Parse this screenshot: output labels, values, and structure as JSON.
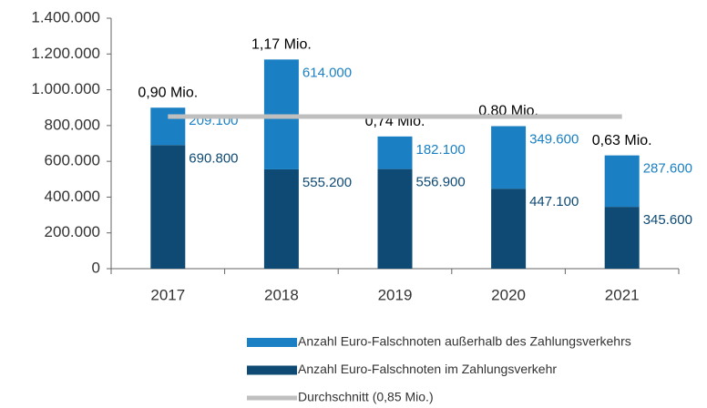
{
  "chart_data": {
    "type": "bar",
    "stacked": true,
    "categories": [
      "2017",
      "2018",
      "2019",
      "2020",
      "2021"
    ],
    "series": [
      {
        "name": "Anzahl Euro-Falschnoten im Zahlungsverkehr",
        "color": "#0e4a73",
        "values": [
          690800,
          555200,
          556900,
          447100,
          345600
        ],
        "value_labels": [
          "690.800",
          "555.200",
          "556.900",
          "447.100",
          "345.600"
        ]
      },
      {
        "name": "Anzahl Euro-Falschnoten außerhalb des Zahlungsverkehrs",
        "color": "#1a80c3",
        "values": [
          209100,
          614000,
          182100,
          349600,
          287600
        ],
        "value_labels": [
          "209.100",
          "614.000",
          "182.100",
          "349.600",
          "287.600"
        ]
      },
      {
        "name": "Durchschnitt (0,85 Mio.)",
        "type": "line",
        "color": "#bfbfbf",
        "values": [
          850000,
          850000,
          850000,
          850000,
          850000
        ]
      }
    ],
    "total_labels": [
      "0,90 Mio.",
      "1,17 Mio.",
      "0,74 Mio.",
      "0,80 Mio.",
      "0,63 Mio."
    ],
    "ylim": [
      0,
      1400000
    ],
    "yticks": [
      0,
      {
        "value": 200000,
        "label": "200.000"
      },
      {
        "value": 400000,
        "label": "400.000"
      },
      {
        "value": 600000,
        "label": "600.000"
      },
      {
        "value": 800000,
        "label": "800.000"
      },
      {
        "value": 1000000,
        "label": "1.000.000"
      },
      {
        "value": 1200000,
        "label": "1.200.000"
      },
      {
        "value": 1400000,
        "label": "1.400.000"
      }
    ],
    "grid": false,
    "legend": "bottom"
  }
}
